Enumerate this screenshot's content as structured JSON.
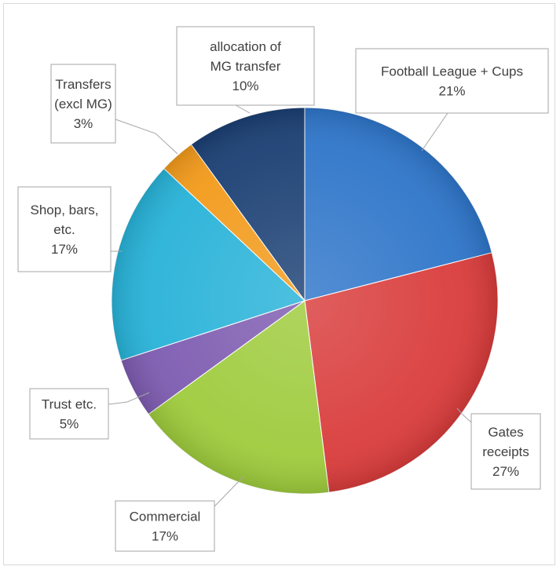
{
  "chart_data": {
    "type": "pie",
    "slices": [
      {
        "label": "Football League + Cups",
        "percent_text": "21%",
        "value": 21,
        "color": "#2e75c9"
      },
      {
        "label": "Gates receipts",
        "percent_text": "27%",
        "value": 27,
        "color": "#d93b3b"
      },
      {
        "label": "Commercial",
        "percent_text": "17%",
        "value": 17,
        "color": "#9ecb3c"
      },
      {
        "label": "Trust etc.",
        "percent_text": "5%",
        "value": 5,
        "color": "#7d5bb0"
      },
      {
        "label": "Shop, bars, etc.",
        "percent_text": "17%",
        "value": 17,
        "color": "#27b2d8"
      },
      {
        "label": "Transfers (excl MG)",
        "percent_text": "3%",
        "value": 3,
        "color": "#f29a1a"
      },
      {
        "label": "allocation of MG transfer",
        "percent_text": "10%",
        "value": 10,
        "color": "#1a3f73"
      }
    ],
    "title": "",
    "legend": "none"
  }
}
